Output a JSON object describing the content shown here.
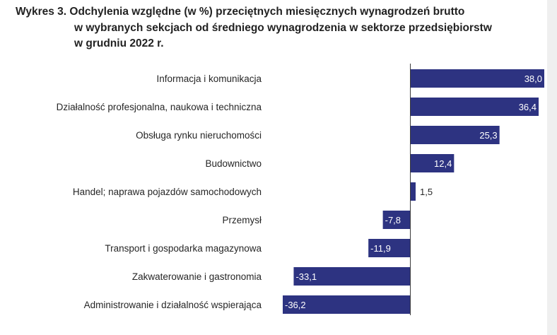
{
  "chart_data": {
    "type": "bar",
    "orientation": "horizontal",
    "title_lines": [
      "Wykres 3. Odchylenia względne (w %) przeciętnych miesięcznych wynagrodzeń brutto",
      "w wybranych sekcjach od średniego wynagrodzenia w sektorze przedsiębiorstw",
      "w grudniu 2022 r."
    ],
    "categories": [
      "Informacja i komunikacja",
      "Działalność profesjonalna, naukowa i techniczna",
      "Obsługa rynku nieruchomości",
      "Budownictwo",
      "Handel; naprawa pojazdów samochodowych",
      "Przemysł",
      "Transport i gospodarka magazynowa",
      "Zakwaterowanie i gastronomia",
      "Administrowanie i działalność wspierająca"
    ],
    "values": [
      38.0,
      36.4,
      25.3,
      12.4,
      1.5,
      -7.8,
      -11.9,
      -33.1,
      -36.2
    ],
    "data_labels": [
      "38,0",
      "36,4",
      "25,3",
      "12,4",
      "1,5",
      "-7,8",
      "-11,9",
      "-33,1",
      "-36,2"
    ],
    "xlim": [
      -36.2,
      38.0
    ],
    "grid": false,
    "colors": {
      "bar": "#2d3381",
      "bar_label": "#ffffff",
      "text": "#262626",
      "axis": "#3c3c3c"
    }
  }
}
